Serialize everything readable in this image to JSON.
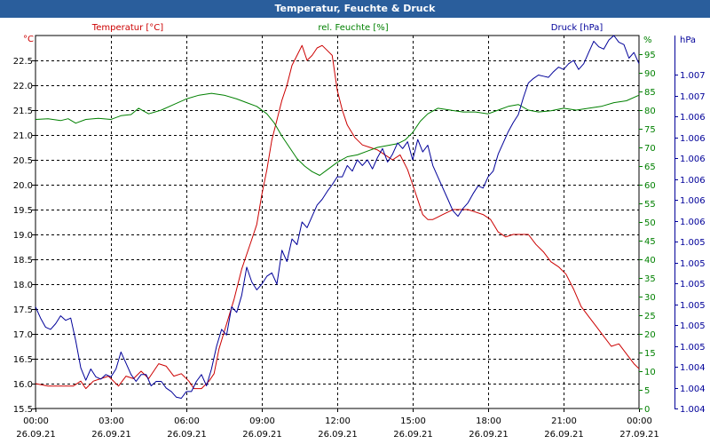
{
  "window": {
    "title": "Temperatur, Feuchte & Druck"
  },
  "colors": {
    "temperature": "#cc0000",
    "humidity": "#008000",
    "pressure": "#000099",
    "grid": "#000000",
    "title_bar": "#2a5e9c",
    "axis_text": "#000000"
  },
  "chart_data": {
    "type": "line",
    "title": "Temperatur, Feuchte & Druck",
    "grid": true,
    "x_axis": {
      "range": [
        "26.09.21 00:00",
        "27.09.21 00:00"
      ],
      "tick_times": [
        "00:00",
        "03:00",
        "06:00",
        "09:00",
        "12:00",
        "15:00",
        "18:00",
        "21:00",
        "00:00"
      ],
      "tick_dates": [
        "26.09.21",
        "26.09.21",
        "26.09.21",
        "26.09.21",
        "26.09.21",
        "26.09.21",
        "26.09.21",
        "26.09.21",
        "27.09.21"
      ]
    },
    "y_axes": {
      "left": {
        "label": "Temperatur [°C]",
        "unit": "°C",
        "range": [
          15.5,
          23.0
        ],
        "ticks": [
          "15.5",
          "16.0",
          "16.5",
          "17.0",
          "17.5",
          "18.0",
          "18.5",
          "19.0",
          "19.5",
          "20.0",
          "20.5",
          "21.0",
          "21.5",
          "22.0",
          "22.5"
        ]
      },
      "middle": {
        "label": "rel. Feuchte [%]",
        "unit": "%",
        "range": [
          0,
          100
        ],
        "ticks": [
          "0",
          "5",
          "10",
          "15",
          "20",
          "25",
          "30",
          "35",
          "40",
          "45",
          "50",
          "55",
          "60",
          "65",
          "70",
          "75",
          "80",
          "85",
          "90",
          "95"
        ]
      },
      "right": {
        "label": "Druck [hPa]",
        "unit": "hPa",
        "range": [
          1004.0,
          1007.3
        ],
        "ticks": [
          "1.004",
          "1.004",
          "1.004",
          "1.005",
          "1.005",
          "1.005",
          "1.005",
          "1.005",
          "1.005",
          "1.006",
          "1.006",
          "1.006",
          "1.006",
          "1.006",
          "1.006",
          "1.007",
          "1.007"
        ]
      }
    },
    "series": [
      {
        "name": "Temperatur [°C]",
        "axis": "left",
        "x_hours": [
          0,
          0.5,
          1.0,
          1.5,
          1.8,
          2.0,
          2.3,
          2.6,
          2.9,
          3.3,
          3.6,
          3.9,
          4.2,
          4.5,
          4.9,
          5.2,
          5.5,
          5.8,
          6.1,
          6.3,
          6.6,
          6.9,
          7.1,
          7.3,
          7.6,
          7.9,
          8.2,
          8.4,
          8.6,
          8.8,
          9.0,
          9.2,
          9.4,
          9.6,
          9.8,
          10.0,
          10.2,
          10.4,
          10.6,
          10.8,
          11.0,
          11.2,
          11.4,
          11.6,
          11.8,
          12.0,
          12.2,
          12.4,
          12.7,
          13.0,
          13.3,
          13.6,
          13.9,
          14.2,
          14.5,
          14.8,
          15.0,
          15.2,
          15.4,
          15.6,
          15.8,
          16.0,
          16.2,
          16.4,
          16.6,
          16.9,
          17.2,
          17.5,
          17.8,
          18.1,
          18.4,
          18.7,
          19.0,
          19.3,
          19.6,
          19.9,
          20.2,
          20.5,
          20.8,
          21.1,
          21.4,
          21.7,
          22.0,
          22.3,
          22.6,
          22.9,
          23.2,
          23.5,
          23.8,
          24.0
        ],
        "values": [
          16.0,
          15.95,
          15.95,
          15.95,
          16.05,
          15.9,
          16.05,
          16.1,
          16.15,
          15.95,
          16.15,
          16.1,
          16.25,
          16.1,
          16.4,
          16.35,
          16.15,
          16.2,
          16.05,
          15.9,
          15.9,
          16.05,
          16.2,
          16.7,
          17.2,
          17.7,
          18.3,
          18.6,
          18.9,
          19.2,
          19.8,
          20.3,
          20.9,
          21.3,
          21.7,
          22.0,
          22.4,
          22.6,
          22.8,
          22.5,
          22.6,
          22.75,
          22.8,
          22.7,
          22.6,
          21.9,
          21.5,
          21.2,
          20.95,
          20.8,
          20.75,
          20.7,
          20.6,
          20.5,
          20.6,
          20.3,
          20.0,
          19.7,
          19.4,
          19.3,
          19.3,
          19.35,
          19.4,
          19.45,
          19.5,
          19.5,
          19.5,
          19.45,
          19.4,
          19.3,
          19.05,
          18.95,
          19.0,
          19.0,
          19.0,
          18.8,
          18.65,
          18.45,
          18.35,
          18.2,
          17.9,
          17.55,
          17.35,
          17.15,
          16.95,
          16.75,
          16.8,
          16.6,
          16.4,
          16.3
        ]
      },
      {
        "name": "rel. Feuchte [%]",
        "axis": "middle",
        "x_hours": [
          0,
          0.5,
          1.0,
          1.3,
          1.6,
          2.0,
          2.5,
          3.0,
          3.4,
          3.8,
          4.1,
          4.5,
          5.0,
          5.5,
          6.0,
          6.5,
          7.0,
          7.5,
          8.0,
          8.4,
          8.8,
          9.2,
          9.5,
          9.8,
          10.1,
          10.4,
          10.7,
          11.0,
          11.3,
          11.6,
          12.0,
          12.4,
          12.8,
          13.2,
          13.6,
          14.0,
          14.4,
          14.7,
          15.0,
          15.3,
          15.6,
          16.0,
          16.5,
          17.0,
          17.5,
          18.0,
          18.4,
          18.8,
          19.2,
          19.6,
          20.0,
          20.5,
          21.0,
          21.5,
          22.0,
          22.5,
          23.0,
          23.5,
          24.0
        ],
        "values": [
          77.5,
          77.7,
          77.2,
          77.7,
          76.5,
          77.5,
          77.8,
          77.5,
          78.5,
          78.8,
          80.5,
          79.0,
          80.0,
          81.5,
          83.0,
          84.0,
          84.5,
          84.0,
          83.0,
          82.0,
          81.0,
          79.0,
          76.5,
          73.0,
          70.0,
          67.0,
          65.0,
          63.5,
          62.5,
          64.0,
          66.0,
          67.5,
          68.0,
          69.0,
          70.0,
          70.5,
          71.0,
          72.0,
          74.0,
          77.0,
          79.0,
          80.5,
          80.0,
          79.5,
          79.5,
          79.0,
          80.0,
          81.0,
          81.5,
          80.0,
          79.5,
          79.8,
          80.5,
          80.0,
          80.5,
          81.0,
          82.0,
          82.5,
          84.0
        ]
      },
      {
        "name": "Druck [hPa]",
        "axis": "right",
        "x_hours": [
          0,
          0.2,
          0.4,
          0.6,
          0.8,
          1.0,
          1.2,
          1.4,
          1.6,
          1.8,
          2.0,
          2.2,
          2.4,
          2.6,
          2.8,
          3.0,
          3.2,
          3.4,
          3.6,
          3.8,
          4.0,
          4.2,
          4.4,
          4.6,
          4.8,
          5.0,
          5.2,
          5.4,
          5.6,
          5.8,
          6.0,
          6.2,
          6.4,
          6.6,
          6.8,
          7.0,
          7.2,
          7.4,
          7.6,
          7.8,
          8.0,
          8.2,
          8.4,
          8.6,
          8.8,
          9.0,
          9.2,
          9.4,
          9.6,
          9.8,
          10.0,
          10.2,
          10.4,
          10.6,
          10.8,
          11.0,
          11.2,
          11.4,
          11.6,
          11.8,
          12.0,
          12.2,
          12.4,
          12.6,
          12.8,
          13.0,
          13.2,
          13.4,
          13.6,
          13.8,
          14.0,
          14.2,
          14.4,
          14.6,
          14.8,
          15.0,
          15.2,
          15.4,
          15.6,
          15.8,
          16.0,
          16.2,
          16.4,
          16.6,
          16.8,
          17.0,
          17.2,
          17.4,
          17.6,
          17.8,
          18.0,
          18.2,
          18.4,
          18.6,
          18.8,
          19.0,
          19.2,
          19.4,
          19.6,
          19.8,
          20.0,
          20.2,
          20.4,
          20.6,
          20.8,
          21.0,
          21.2,
          21.4,
          21.6,
          21.8,
          22.0,
          22.2,
          22.4,
          22.6,
          22.8,
          23.0,
          23.2,
          23.4,
          23.6,
          23.8,
          24.0
        ],
        "values": [
          1004.9,
          1004.8,
          1004.72,
          1004.7,
          1004.75,
          1004.82,
          1004.78,
          1004.8,
          1004.6,
          1004.36,
          1004.25,
          1004.35,
          1004.28,
          1004.26,
          1004.3,
          1004.28,
          1004.35,
          1004.5,
          1004.4,
          1004.3,
          1004.24,
          1004.3,
          1004.3,
          1004.2,
          1004.24,
          1004.24,
          1004.18,
          1004.15,
          1004.1,
          1004.09,
          1004.15,
          1004.15,
          1004.24,
          1004.3,
          1004.2,
          1004.35,
          1004.55,
          1004.7,
          1004.65,
          1004.9,
          1004.85,
          1005.0,
          1005.25,
          1005.12,
          1005.05,
          1005.1,
          1005.17,
          1005.2,
          1005.1,
          1005.4,
          1005.3,
          1005.5,
          1005.45,
          1005.65,
          1005.6,
          1005.7,
          1005.8,
          1005.85,
          1005.92,
          1005.98,
          1006.05,
          1006.05,
          1006.15,
          1006.1,
          1006.2,
          1006.15,
          1006.2,
          1006.12,
          1006.22,
          1006.3,
          1006.18,
          1006.25,
          1006.35,
          1006.3,
          1006.36,
          1006.2,
          1006.38,
          1006.27,
          1006.33,
          1006.15,
          1006.05,
          1005.95,
          1005.85,
          1005.75,
          1005.7,
          1005.77,
          1005.82,
          1005.9,
          1005.97,
          1005.95,
          1006.05,
          1006.1,
          1006.25,
          1006.35,
          1006.45,
          1006.53,
          1006.6,
          1006.75,
          1006.88,
          1006.92,
          1006.95,
          1006.94,
          1006.93,
          1006.98,
          1007.02,
          1007.0,
          1007.05,
          1007.08,
          1007.0,
          1007.05,
          1007.15,
          1007.25,
          1007.2,
          1007.18,
          1007.26,
          1007.3,
          1007.24,
          1007.22,
          1007.1,
          1007.15,
          1007.05
        ]
      }
    ]
  }
}
